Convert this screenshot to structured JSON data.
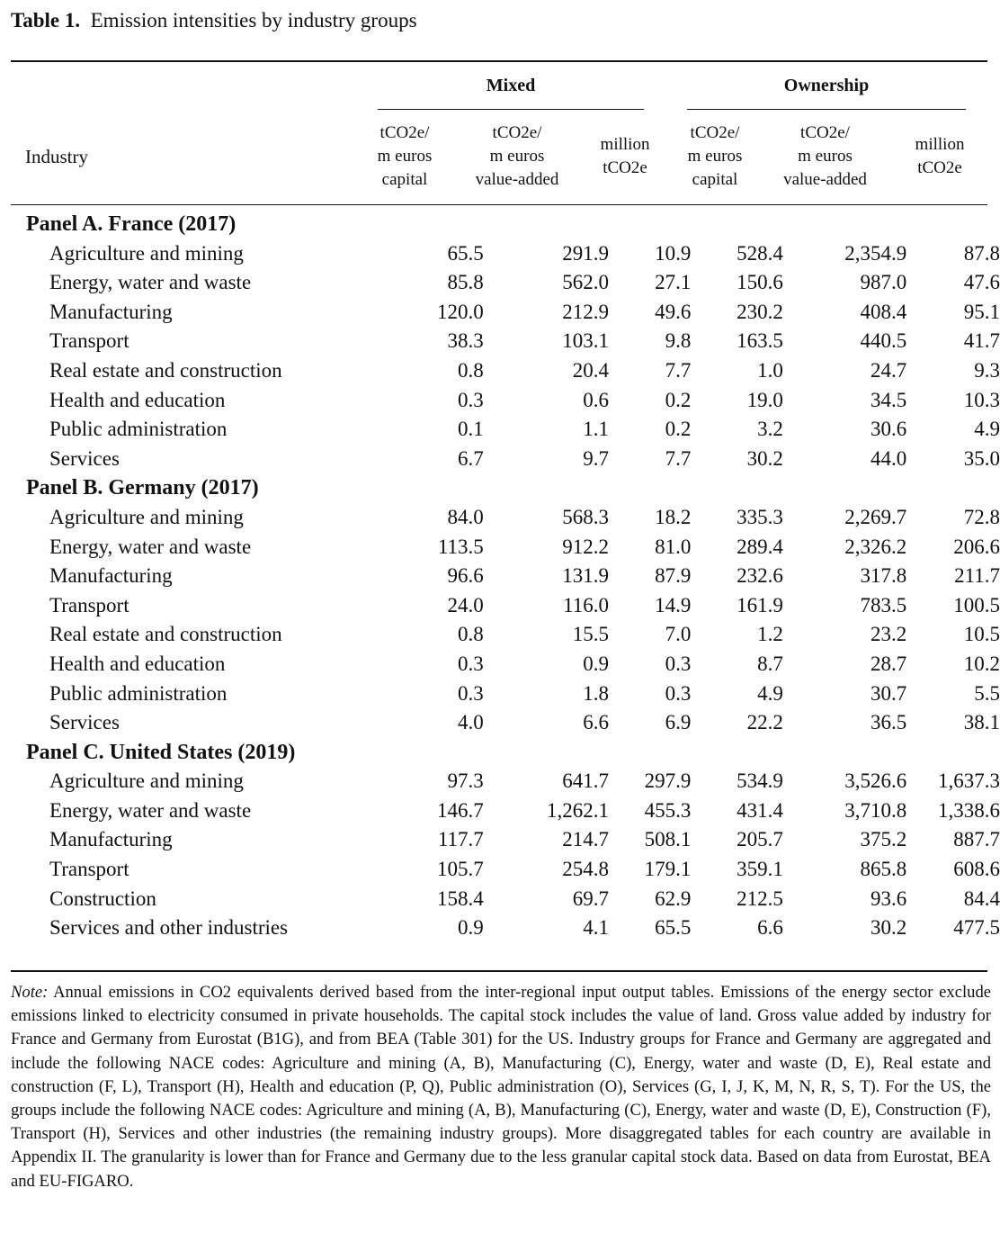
{
  "caption": {
    "label": "Table 1.",
    "title": "Emission intensities by industry groups"
  },
  "groups": {
    "mixed": "Mixed",
    "ownership": "Ownership"
  },
  "industry_header": "Industry",
  "col_headers": [
    [
      "tCO2e/",
      "m euros",
      "capital"
    ],
    [
      "tCO2e/",
      "m euros",
      "value-added"
    ],
    [
      "million",
      "tCO2e"
    ],
    [
      "tCO2e/",
      "m euros",
      "capital"
    ],
    [
      "tCO2e/",
      "m euros",
      "value-added"
    ],
    [
      "million",
      "tCO2e"
    ]
  ],
  "panels": [
    {
      "title": "Panel A. France (2017)",
      "rows": [
        [
          "Agriculture and mining",
          "65.5",
          "291.9",
          "10.9",
          "528.4",
          "2,354.9",
          "87.8"
        ],
        [
          "Energy, water and waste",
          "85.8",
          "562.0",
          "27.1",
          "150.6",
          "987.0",
          "47.6"
        ],
        [
          "Manufacturing",
          "120.0",
          "212.9",
          "49.6",
          "230.2",
          "408.4",
          "95.1"
        ],
        [
          "Transport",
          "38.3",
          "103.1",
          "9.8",
          "163.5",
          "440.5",
          "41.7"
        ],
        [
          "Real estate and construction",
          "0.8",
          "20.4",
          "7.7",
          "1.0",
          "24.7",
          "9.3"
        ],
        [
          "Health and education",
          "0.3",
          "0.6",
          "0.2",
          "19.0",
          "34.5",
          "10.3"
        ],
        [
          "Public administration",
          "0.1",
          "1.1",
          "0.2",
          "3.2",
          "30.6",
          "4.9"
        ],
        [
          "Services",
          "6.7",
          "9.7",
          "7.7",
          "30.2",
          "44.0",
          "35.0"
        ]
      ]
    },
    {
      "title": "Panel B. Germany (2017)",
      "rows": [
        [
          "Agriculture and mining",
          "84.0",
          "568.3",
          "18.2",
          "335.3",
          "2,269.7",
          "72.8"
        ],
        [
          "Energy, water and waste",
          "113.5",
          "912.2",
          "81.0",
          "289.4",
          "2,326.2",
          "206.6"
        ],
        [
          "Manufacturing",
          "96.6",
          "131.9",
          "87.9",
          "232.6",
          "317.8",
          "211.7"
        ],
        [
          "Transport",
          "24.0",
          "116.0",
          "14.9",
          "161.9",
          "783.5",
          "100.5"
        ],
        [
          "Real estate and construction",
          "0.8",
          "15.5",
          "7.0",
          "1.2",
          "23.2",
          "10.5"
        ],
        [
          "Health and education",
          "0.3",
          "0.9",
          "0.3",
          "8.7",
          "28.7",
          "10.2"
        ],
        [
          "Public administration",
          "0.3",
          "1.8",
          "0.3",
          "4.9",
          "30.7",
          "5.5"
        ],
        [
          "Services",
          "4.0",
          "6.6",
          "6.9",
          "22.2",
          "36.5",
          "38.1"
        ]
      ]
    },
    {
      "title": "Panel C. United States (2019)",
      "rows": [
        [
          "Agriculture and mining",
          "97.3",
          "641.7",
          "297.9",
          "534.9",
          "3,526.6",
          "1,637.3"
        ],
        [
          "Energy, water and waste",
          "146.7",
          "1,262.1",
          "455.3",
          "431.4",
          "3,710.8",
          "1,338.6"
        ],
        [
          "Manufacturing",
          "117.7",
          "214.7",
          "508.1",
          "205.7",
          "375.2",
          "887.7"
        ],
        [
          "Transport",
          "105.7",
          "254.8",
          "179.1",
          "359.1",
          "865.8",
          "608.6"
        ],
        [
          "Construction",
          "158.4",
          "69.7",
          "62.9",
          "212.5",
          "93.6",
          "84.4"
        ],
        [
          "Services and other industries",
          "0.9",
          "4.1",
          "65.5",
          "6.6",
          "30.2",
          "477.5"
        ]
      ]
    }
  ],
  "note": {
    "label": "Note:",
    "text": "Annual emissions in CO2 equivalents derived based from the inter-regional input output tables. Emissions of the energy sector exclude emissions linked to electricity consumed in private households. The capital stock includes the value of land. Gross value added by industry for France and Germany from Eurostat (B1G), and from BEA (Table 301) for the US. Industry groups for France and Germany are aggregated and include the following NACE codes: Agriculture and mining (A, B), Manufacturing (C), Energy, water and waste (D, E), Real estate and construction (F, L), Transport (H), Health and education (P, Q), Public administration (O), Services (G, I, J, K, M, N, R, S, T). For the US, the groups include the following NACE codes: Agriculture and mining (A, B), Manufacturing (C), Energy, water and waste (D, E), Construction (F), Transport (H), Services and other industries (the remaining industry groups). More disaggregated tables for each country are available in Appendix II. The granularity is lower than for France and Germany due to the less granular capital stock data. Based on data from Eurostat, BEA and EU-FIGARO."
  }
}
